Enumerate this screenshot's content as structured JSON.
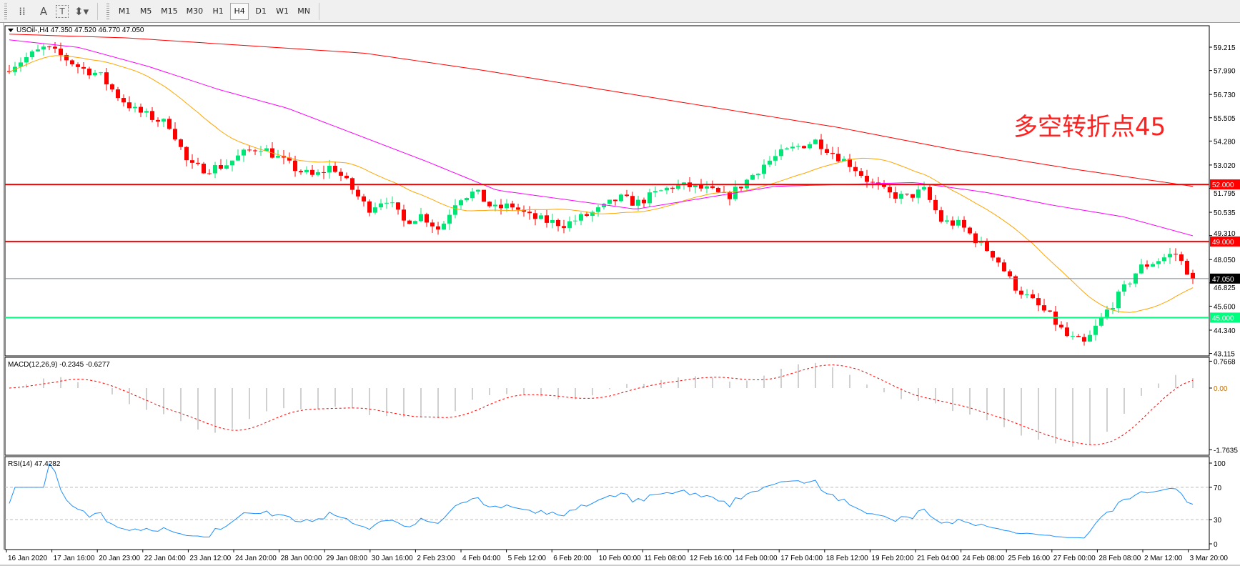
{
  "toolbar": {
    "tools": [
      {
        "name": "grid-properties-icon",
        "glyph": "⁞⁞"
      },
      {
        "name": "text-tool-icon",
        "glyph": "A"
      },
      {
        "name": "text-label-tool-icon",
        "glyph": "T"
      },
      {
        "name": "arrows-tool-icon",
        "glyph": "⬍▾"
      }
    ],
    "timeframes": [
      "M1",
      "M5",
      "M15",
      "M30",
      "H1",
      "H4",
      "D1",
      "W1",
      "MN"
    ],
    "active_timeframe": "H4"
  },
  "main": {
    "title": "USOil-,H4  47.350 47.520 46.770 47.050",
    "annotation": "多空转折点45",
    "price_ticks": [
      "59.215",
      "57.990",
      "56.730",
      "55.505",
      "54.280",
      "53.020",
      "51.795",
      "50.535",
      "49.310",
      "48.050",
      "46.825",
      "45.600",
      "44.340",
      "43.115"
    ],
    "levels": [
      {
        "label": "52.000",
        "value": 52.0,
        "color": "#ff0000"
      },
      {
        "label": "49.000",
        "value": 49.0,
        "color": "#ff0000"
      },
      {
        "label": "45.000",
        "value": 45.0,
        "color": "#00ff7f"
      }
    ],
    "current_price": {
      "label": "47.050",
      "value": 47.05,
      "color": "#778899"
    }
  },
  "macd": {
    "title": "MACD(12,26,9) -0.2345 -0.6277",
    "ticks": [
      "0.7668",
      "0.00",
      "-1.7635"
    ]
  },
  "rsi": {
    "title": "RSI(14) 47.4282",
    "ticks": [
      "100",
      "70",
      "30",
      "0"
    ]
  },
  "time_axis": [
    "16 Jan 2020",
    "17 Jan 16:00",
    "20 Jan 23:00",
    "22 Jan 04:00",
    "23 Jan 12:00",
    "24 Jan 20:00",
    "28 Jan 00:00",
    "29 Jan 08:00",
    "30 Jan 16:00",
    "2 Feb 23:00",
    "4 Feb 04:00",
    "5 Feb 12:00",
    "6 Feb 20:00",
    "10 Feb 00:00",
    "11 Feb 08:00",
    "12 Feb 16:00",
    "14 Feb 00:00",
    "17 Feb 04:00",
    "18 Feb 12:00",
    "19 Feb 20:00",
    "21 Feb 04:00",
    "24 Feb 08:00",
    "25 Feb 16:00",
    "27 Feb 00:00",
    "28 Feb 08:00",
    "2 Mar 12:00",
    "3 Mar 20:00"
  ],
  "colors": {
    "bull": "#00e676",
    "bear": "#ff0000",
    "ma_fast": "#ffa500",
    "ma_mid": "#ff00ff",
    "ma_slow": "#ff0000",
    "macd_hist": "#c0c0c0",
    "macd_signal": "#ff0000",
    "rsi": "#1e90ff"
  },
  "chart_data": {
    "type": "candlestick",
    "symbol": "USOil-",
    "timeframe": "H4",
    "ylim": [
      43.115,
      59.9
    ],
    "approx_close_path": [
      58.16,
      58.69,
      59.2,
      58.7,
      58.1,
      57.8,
      56.7,
      55.9,
      55.5,
      55.1,
      52.98,
      52.8,
      53.0,
      53.6,
      54.0,
      53.4,
      52.8,
      52.4,
      53.0,
      51.9,
      50.7,
      51.3,
      50.05,
      50.4,
      49.6,
      51.3,
      51.6,
      50.7,
      50.9,
      50.3,
      50.05,
      49.9,
      50.3,
      50.7,
      51.3,
      51.0,
      51.5,
      51.9,
      51.9,
      51.7,
      51.3,
      52.1,
      53.0,
      53.6,
      54.0,
      54.3,
      53.6,
      53.0,
      52.1,
      51.5,
      51.3,
      51.7,
      50.05,
      49.9,
      49.0,
      48.2,
      46.7,
      45.9,
      45.1,
      44.0,
      43.6,
      45.1,
      46.3,
      47.6,
      48.0,
      48.4,
      47.05
    ],
    "last_bar": {
      "open": 47.35,
      "high": 47.52,
      "low": 46.77,
      "close": 47.05
    },
    "ma_mid_path": [
      59.6,
      59.2,
      58.2,
      57.0,
      56.0,
      54.6,
      53.2,
      51.7,
      51.2,
      50.7,
      51.3,
      51.9,
      52.0,
      52.1,
      51.6,
      50.9,
      50.3,
      49.3
    ],
    "ma_slow_path": [
      59.9,
      59.7,
      59.3,
      58.9,
      58.0,
      57.0,
      56.0,
      55.0,
      53.8,
      52.8,
      51.9
    ],
    "macd": {
      "fast": 12,
      "slow": 26,
      "signal": 9,
      "ylim": [
        -1.7635,
        0.7668
      ],
      "last_main": -0.2345,
      "last_signal": -0.6277
    },
    "rsi": {
      "period": 14,
      "ylim": [
        0,
        100
      ],
      "levels": [
        30,
        70
      ],
      "last": 47.4282
    }
  }
}
